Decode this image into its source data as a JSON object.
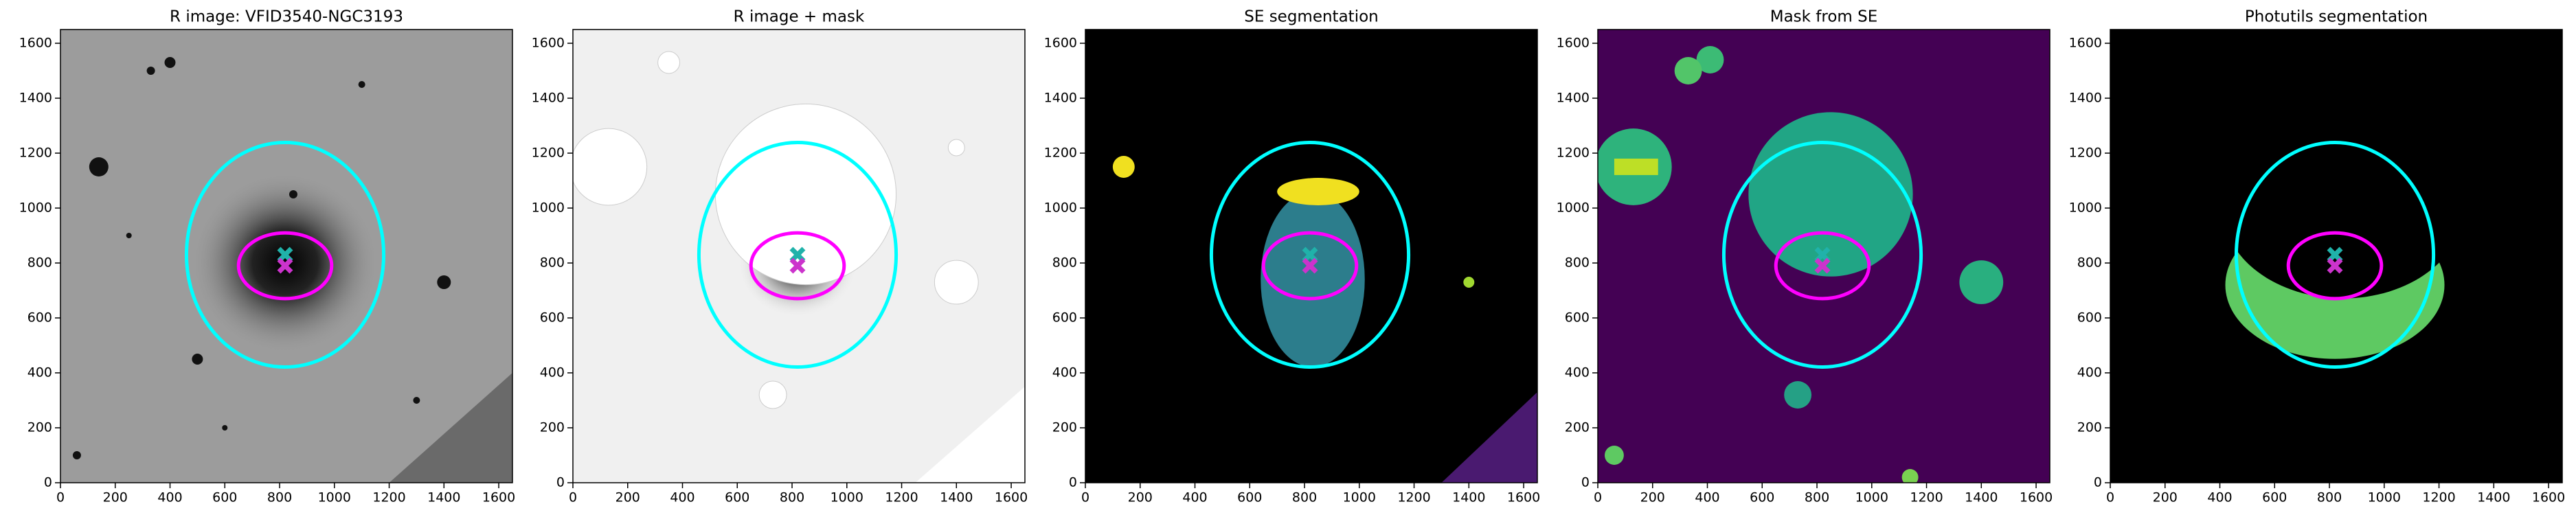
{
  "chart_data": [
    {
      "type": "image",
      "title": "R image: VFID3540-NGC3193",
      "xlim": [
        0,
        1650
      ],
      "ylim": [
        0,
        1650
      ],
      "xticks": [
        0,
        200,
        400,
        600,
        800,
        1000,
        1200,
        1400,
        1600
      ],
      "yticks": [
        0,
        200,
        400,
        600,
        800,
        1000,
        1200,
        1400,
        1600
      ],
      "ellipses": [
        {
          "cx": 820,
          "cy": 830,
          "rx": 360,
          "ry": 410,
          "color": "#00ffff"
        },
        {
          "cx": 820,
          "cy": 790,
          "rx": 170,
          "ry": 120,
          "color": "#ff00ff"
        }
      ],
      "markers": [
        {
          "x": 820,
          "y": 830,
          "color": "#20b2aa"
        },
        {
          "x": 820,
          "y": 790,
          "color": "#cc33cc"
        }
      ]
    },
    {
      "type": "image",
      "title": "R image + mask",
      "xlim": [
        0,
        1650
      ],
      "ylim": [
        0,
        1650
      ],
      "xticks": [
        0,
        200,
        400,
        600,
        800,
        1000,
        1200,
        1400,
        1600
      ],
      "yticks": [
        0,
        200,
        400,
        600,
        800,
        1000,
        1200,
        1400,
        1600
      ],
      "ellipses": [
        {
          "cx": 820,
          "cy": 830,
          "rx": 360,
          "ry": 410,
          "color": "#00ffff"
        },
        {
          "cx": 820,
          "cy": 790,
          "rx": 170,
          "ry": 120,
          "color": "#ff00ff"
        }
      ],
      "markers": [
        {
          "x": 820,
          "y": 830,
          "color": "#20b2aa"
        },
        {
          "x": 820,
          "y": 790,
          "color": "#cc33cc"
        }
      ]
    },
    {
      "type": "image",
      "title": "SE segmentation",
      "xlim": [
        0,
        1650
      ],
      "ylim": [
        0,
        1650
      ],
      "xticks": [
        0,
        200,
        400,
        600,
        800,
        1000,
        1200,
        1400,
        1600
      ],
      "yticks": [
        0,
        200,
        400,
        600,
        800,
        1000,
        1200,
        1400,
        1600
      ],
      "ellipses": [
        {
          "cx": 820,
          "cy": 830,
          "rx": 360,
          "ry": 410,
          "color": "#00ffff"
        },
        {
          "cx": 820,
          "cy": 790,
          "rx": 170,
          "ry": 120,
          "color": "#ff00ff"
        }
      ],
      "markers": [
        {
          "x": 820,
          "y": 830,
          "color": "#20b2aa"
        },
        {
          "x": 820,
          "y": 790,
          "color": "#cc33cc"
        }
      ]
    },
    {
      "type": "image",
      "title": "Mask from SE",
      "xlim": [
        0,
        1650
      ],
      "ylim": [
        0,
        1650
      ],
      "xticks": [
        0,
        200,
        400,
        600,
        800,
        1000,
        1200,
        1400,
        1600
      ],
      "yticks": [
        0,
        200,
        400,
        600,
        800,
        1000,
        1200,
        1400,
        1600
      ],
      "ellipses": [
        {
          "cx": 820,
          "cy": 830,
          "rx": 360,
          "ry": 410,
          "color": "#00ffff"
        },
        {
          "cx": 820,
          "cy": 790,
          "rx": 170,
          "ry": 120,
          "color": "#ff00ff"
        }
      ],
      "markers": [
        {
          "x": 820,
          "y": 830,
          "color": "#20b2aa"
        },
        {
          "x": 820,
          "y": 790,
          "color": "#cc33cc"
        }
      ]
    },
    {
      "type": "image",
      "title": "Photutils segmentation",
      "xlim": [
        0,
        1650
      ],
      "ylim": [
        0,
        1650
      ],
      "xticks": [
        0,
        200,
        400,
        600,
        800,
        1000,
        1200,
        1400,
        1600
      ],
      "yticks": [
        0,
        200,
        400,
        600,
        800,
        1000,
        1200,
        1400,
        1600
      ],
      "ellipses": [
        {
          "cx": 820,
          "cy": 830,
          "rx": 360,
          "ry": 410,
          "color": "#00ffff"
        },
        {
          "cx": 820,
          "cy": 790,
          "rx": 170,
          "ry": 120,
          "color": "#ff00ff"
        }
      ],
      "markers": [
        {
          "x": 820,
          "y": 830,
          "color": "#20b2aa"
        },
        {
          "x": 820,
          "y": 790,
          "color": "#cc33cc"
        }
      ]
    }
  ]
}
